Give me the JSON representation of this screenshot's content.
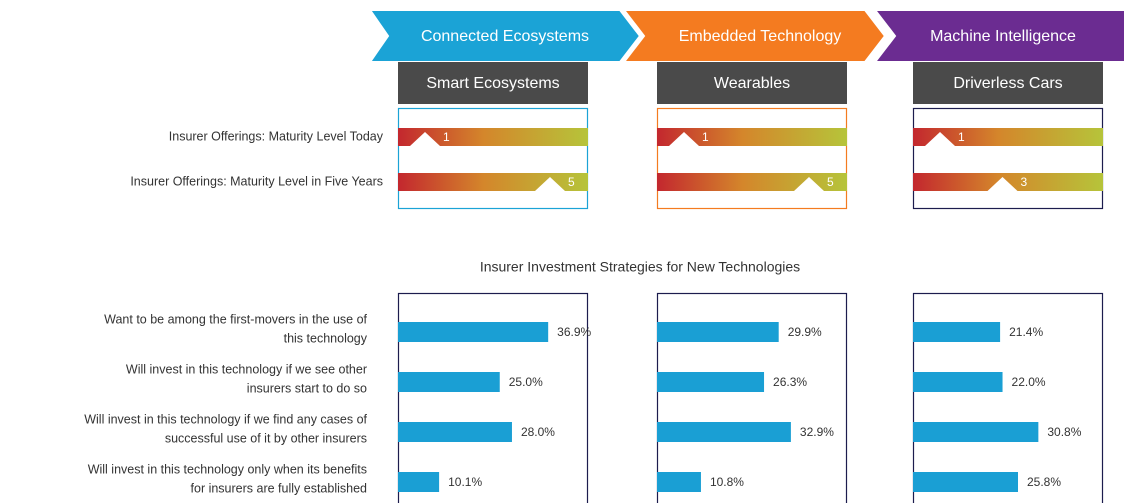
{
  "columns": [
    {
      "stage": "Connected Ecosystems",
      "technology": "Smart Ecosystems",
      "color": "#1ba3d6",
      "border": "#1ba3d6"
    },
    {
      "stage": "Embedded Technology",
      "technology": "Wearables",
      "color": "#f47b20",
      "border": "#f47b20"
    },
    {
      "stage": "Machine Intelligence",
      "technology": "Driverless Cars",
      "color": "#6b2c91",
      "border": "#1c1c4e"
    }
  ],
  "maturity": {
    "rows": [
      "Insurer Offerings: Maturity Level Today",
      "Insurer Offerings: Maturity Level in Five Years"
    ],
    "levels": [
      [
        1,
        5
      ],
      [
        1,
        5
      ],
      [
        1,
        3
      ]
    ]
  },
  "chart_data": {
    "type": "bar",
    "title": "Insurer Investment Strategies for New Technologies",
    "categories": [
      [
        "Want to be among the first-movers in the use of",
        "this technology"
      ],
      [
        "Will invest in this technology if we see other",
        "insurers start to do so"
      ],
      [
        "Will invest in this technology if we find any cases of",
        "successful use of it by other insurers"
      ],
      [
        "Will invest in this technology only when its benefits",
        "for insurers are fully established"
      ]
    ],
    "series": [
      {
        "color": "#1a9fd4",
        "values": [
          36.9,
          25.0,
          28.0,
          10.1
        ],
        "value_labels": [
          "36.9%",
          "25.0%",
          "28.0%",
          "10.1%"
        ]
      },
      {
        "color": "#1a9fd4",
        "values": [
          29.9,
          26.3,
          32.9,
          10.8
        ],
        "value_labels": [
          "29.9%",
          "26.3%",
          "32.9%",
          "10.8%"
        ]
      },
      {
        "color": "#1a9fd4",
        "values": [
          21.4,
          22.0,
          30.8,
          25.8
        ],
        "value_labels": [
          "21.4%",
          "22.0%",
          "30.8%",
          "25.8%"
        ]
      }
    ]
  }
}
